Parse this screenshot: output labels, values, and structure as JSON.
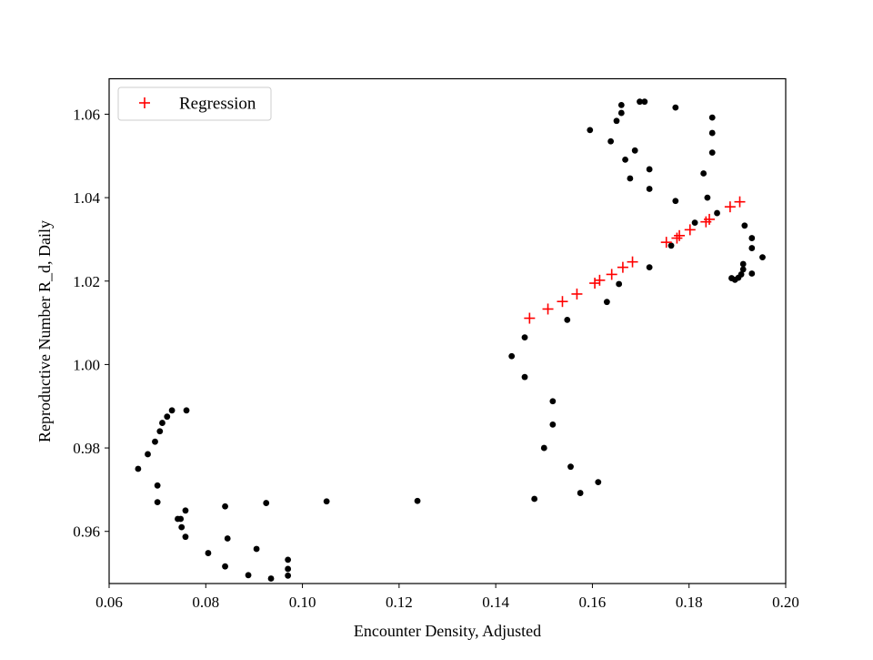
{
  "chart_data": {
    "type": "scatter",
    "xlabel": "Encounter Density, Adjusted",
    "ylabel": "Reproductive Number R_d, Daily",
    "xlim": [
      0.06,
      0.2
    ],
    "ylim": [
      0.9475,
      1.0685
    ],
    "xticks": [
      0.06,
      0.08,
      0.1,
      0.12,
      0.14,
      0.16,
      0.18,
      0.2
    ],
    "xtick_labels": [
      "0.06",
      "0.08",
      "0.10",
      "0.12",
      "0.14",
      "0.16",
      "0.18",
      "0.20"
    ],
    "yticks": [
      0.96,
      0.98,
      1.0,
      1.02,
      1.04,
      1.06
    ],
    "ytick_labels": [
      "0.96",
      "0.98",
      "1.00",
      "1.02",
      "1.04",
      "1.06"
    ],
    "grid": false,
    "legend": {
      "placement": "top-left",
      "entries": [
        "Regression"
      ]
    },
    "series": [
      {
        "marker": "dot",
        "color": "#000000",
        "points": [
          [
            0.066,
            0.975
          ],
          [
            0.068,
            0.9785
          ],
          [
            0.0695,
            0.9815
          ],
          [
            0.0705,
            0.984
          ],
          [
            0.071,
            0.986
          ],
          [
            0.072,
            0.9875
          ],
          [
            0.073,
            0.989
          ],
          [
            0.076,
            0.989
          ],
          [
            0.07,
            0.971
          ],
          [
            0.07,
            0.967
          ],
          [
            0.0742,
            0.963
          ],
          [
            0.0748,
            0.963
          ],
          [
            0.0758,
            0.965
          ],
          [
            0.075,
            0.961
          ],
          [
            0.0758,
            0.9587
          ],
          [
            0.0805,
            0.9548
          ],
          [
            0.084,
            0.9516
          ],
          [
            0.0845,
            0.9583
          ],
          [
            0.084,
            0.966
          ],
          [
            0.0888,
            0.9495
          ],
          [
            0.0905,
            0.9558
          ],
          [
            0.0925,
            0.9668
          ],
          [
            0.0935,
            0.9487
          ],
          [
            0.097,
            0.9532
          ],
          [
            0.097,
            0.951
          ],
          [
            0.097,
            0.9494
          ],
          [
            0.105,
            0.9672
          ],
          [
            0.1238,
            0.9673
          ],
          [
            0.1433,
            1.002
          ],
          [
            0.146,
            1.0065
          ],
          [
            0.146,
            0.997
          ],
          [
            0.1518,
            0.9912
          ],
          [
            0.1518,
            0.9856
          ],
          [
            0.15,
            0.98
          ],
          [
            0.148,
            0.9678
          ],
          [
            0.1555,
            0.9755
          ],
          [
            0.1575,
            0.9692
          ],
          [
            0.1612,
            0.9718
          ],
          [
            0.1548,
            1.0107
          ],
          [
            0.163,
            1.015
          ],
          [
            0.1655,
            1.0193
          ],
          [
            0.1595,
            1.0562
          ],
          [
            0.1638,
            1.0535
          ],
          [
            0.165,
            1.0584
          ],
          [
            0.166,
            1.0603
          ],
          [
            0.166,
            1.0622
          ],
          [
            0.1668,
            1.0491
          ],
          [
            0.1678,
            1.0446
          ],
          [
            0.1688,
            1.0513
          ],
          [
            0.1698,
            1.063
          ],
          [
            0.1708,
            1.063
          ],
          [
            0.1718,
            1.0468
          ],
          [
            0.1718,
            1.0421
          ],
          [
            0.1718,
            1.0233
          ],
          [
            0.1763,
            1.0285
          ],
          [
            0.1772,
            1.0392
          ],
          [
            0.1772,
            1.0616
          ],
          [
            0.1812,
            1.034
          ],
          [
            0.183,
            1.0458
          ],
          [
            0.1838,
            1.04
          ],
          [
            0.1848,
            1.0592
          ],
          [
            0.1848,
            1.0555
          ],
          [
            0.1848,
            1.0508
          ],
          [
            0.1858,
            1.0363
          ],
          [
            0.1888,
            1.0207
          ],
          [
            0.1895,
            1.0203
          ],
          [
            0.1902,
            1.0208
          ],
          [
            0.1908,
            1.0216
          ],
          [
            0.1912,
            1.0228
          ],
          [
            0.1912,
            1.0241
          ],
          [
            0.1915,
            1.0333
          ],
          [
            0.193,
            1.0218
          ],
          [
            0.193,
            1.0279
          ],
          [
            0.193,
            1.0303
          ],
          [
            0.1952,
            1.0257
          ]
        ]
      },
      {
        "name": "Regression",
        "marker": "plus",
        "color": "#ff0000",
        "points": [
          [
            0.147,
            1.0111
          ],
          [
            0.1508,
            1.0133
          ],
          [
            0.1538,
            1.0151
          ],
          [
            0.1568,
            1.0169
          ],
          [
            0.1605,
            1.0195
          ],
          [
            0.1615,
            1.0202
          ],
          [
            0.164,
            1.0216
          ],
          [
            0.1663,
            1.0233
          ],
          [
            0.1683,
            1.0246
          ],
          [
            0.1753,
            1.0293
          ],
          [
            0.1775,
            1.0303
          ],
          [
            0.178,
            1.0309
          ],
          [
            0.1802,
            1.0323
          ],
          [
            0.1835,
            1.0342
          ],
          [
            0.1842,
            1.0348
          ],
          [
            0.1885,
            1.0378
          ],
          [
            0.1905,
            1.039
          ]
        ]
      }
    ]
  }
}
